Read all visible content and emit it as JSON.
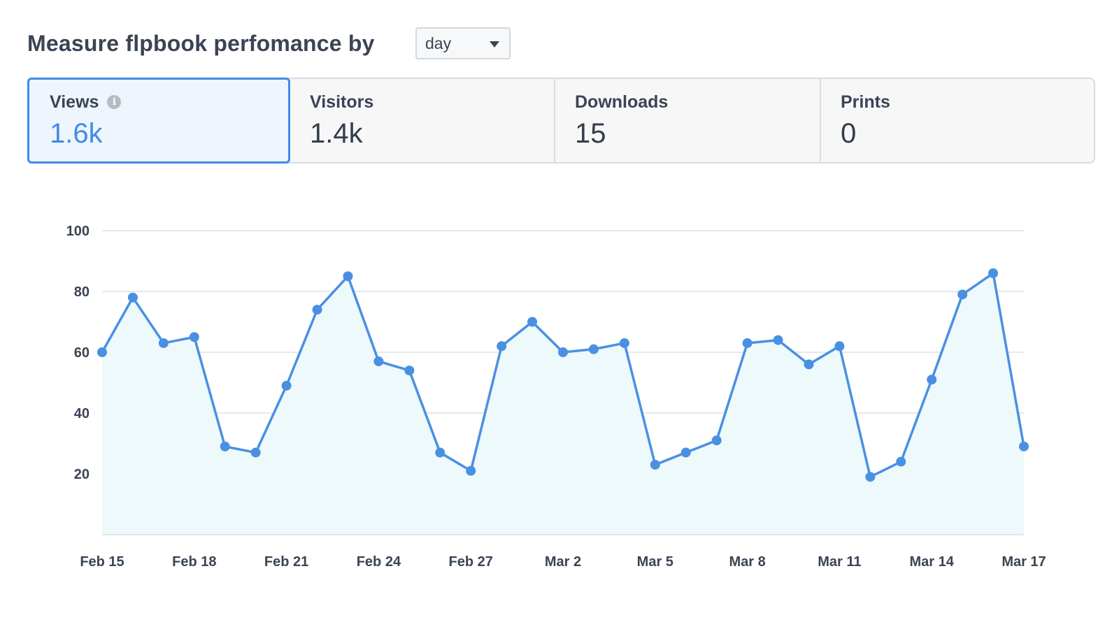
{
  "header": {
    "title": "Measure flpbook perfomance by",
    "period_select": {
      "value": "day"
    }
  },
  "metrics": [
    {
      "label": "Views",
      "value": "1.6k",
      "active": true,
      "has_info": true
    },
    {
      "label": "Visitors",
      "value": "1.4k",
      "active": false,
      "has_info": false
    },
    {
      "label": "Downloads",
      "value": "15",
      "active": false,
      "has_info": false
    },
    {
      "label": "Prints",
      "value": "0",
      "active": false,
      "has_info": false
    }
  ],
  "colors": {
    "accent": "#3f8ce6",
    "line": "#4a90e2",
    "area_fill": "#eef9fc",
    "grid": "#e6e8eb"
  },
  "chart_data": {
    "type": "area",
    "x": [
      "Feb 15",
      "Feb 16",
      "Feb 17",
      "Feb 18",
      "Feb 19",
      "Feb 20",
      "Feb 21",
      "Feb 22",
      "Feb 23",
      "Feb 24",
      "Feb 25",
      "Feb 26",
      "Feb 27",
      "Feb 28",
      "Mar 1",
      "Mar 2",
      "Mar 3",
      "Mar 4",
      "Mar 5",
      "Mar 6",
      "Mar 7",
      "Mar 8",
      "Mar 9",
      "Mar 10",
      "Mar 11",
      "Mar 12",
      "Mar 13",
      "Mar 14",
      "Mar 15",
      "Mar 16",
      "Mar 17"
    ],
    "x_tick_labels": [
      "Feb 15",
      "Feb 18",
      "Feb 21",
      "Feb 24",
      "Feb 27",
      "Mar 2",
      "Mar 5",
      "Mar 8",
      "Mar 11",
      "Mar 14",
      "Mar 17"
    ],
    "y_tick_labels": [
      20,
      40,
      60,
      80,
      100
    ],
    "ylim": [
      0,
      100
    ],
    "grid": true,
    "series": [
      {
        "values": [
          60,
          78,
          63,
          65,
          29,
          27,
          49,
          74,
          85,
          57,
          54,
          27,
          21,
          62,
          70,
          60,
          61,
          63,
          23,
          27,
          31,
          63,
          64,
          56,
          62,
          19,
          24,
          51,
          79,
          86,
          29
        ]
      }
    ]
  }
}
